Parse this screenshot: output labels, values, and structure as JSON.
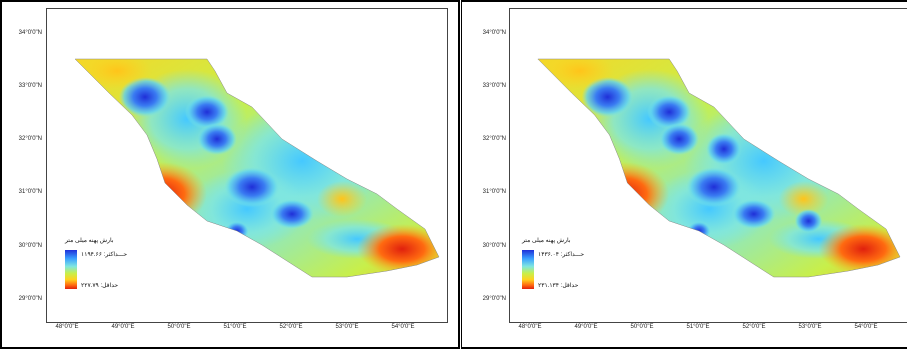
{
  "maps": [
    {
      "latitude_labels": [
        "34°0'0\"N",
        "33°0'0\"N",
        "32°0'0\"N",
        "31°0'0\"N",
        "30°0'0\"N",
        "29°0'0\"N"
      ],
      "longitude_labels": [
        "48°0'0\"E",
        "49°0'0\"E",
        "50°0'0\"E",
        "51°0'0\"E",
        "52°0'0\"E",
        "53°0'0\"E",
        "54°0'0\"E"
      ],
      "legend": {
        "title": "بارش پهنه میلی متر",
        "max_label": "حـــداکثر: ۱۱۹۴.۶۶",
        "min_label": "حداقل: ۲۲۷.۷۹"
      }
    },
    {
      "latitude_labels": [
        "34°0'0\"N",
        "33°0'0\"N",
        "32°0'0\"N",
        "31°0'0\"N",
        "30°0'0\"N",
        "29°0'0\"N"
      ],
      "longitude_labels": [
        "48°0'0\"E",
        "49°0'0\"E",
        "50°0'0\"E",
        "51°0'0\"E",
        "52°0'0\"E",
        "53°0'0\"E",
        "54°0'0\"E"
      ],
      "legend": {
        "title": "بارش پهنه میلی متر",
        "max_label": "حـــداکثر: ۱۴۳۶.۰۴",
        "min_label": "حداقل: ۲۳۱.۱۳۴"
      }
    }
  ],
  "colors": {
    "high": "#1f2fd8",
    "mid_high": "#3aa0ff",
    "mid": "#7fe6e0",
    "mid_low": "#c8ef4a",
    "low_mid": "#ffd21f",
    "low": "#e0200e"
  }
}
